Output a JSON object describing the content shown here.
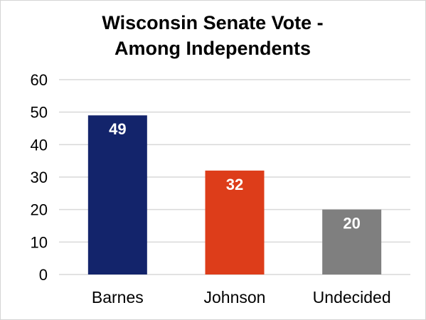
{
  "chart_data": {
    "type": "bar",
    "title_lines": [
      "Wisconsin Senate Vote -",
      "Among Independents"
    ],
    "categories": [
      "Barnes",
      "Johnson",
      "Undecided"
    ],
    "values": [
      49,
      32,
      20
    ],
    "value_labels": [
      "49",
      "32",
      "20"
    ],
    "colors": [
      "#13246b",
      "#dd3d1a",
      "#7f7f7f"
    ],
    "ylim": [
      0,
      60
    ],
    "yticks": [
      0,
      10,
      20,
      30,
      40,
      50,
      60
    ],
    "ytick_labels": [
      "0",
      "10",
      "20",
      "30",
      "40",
      "50",
      "60"
    ],
    "grid": true,
    "legend": "none",
    "xlabel": "",
    "ylabel": ""
  }
}
